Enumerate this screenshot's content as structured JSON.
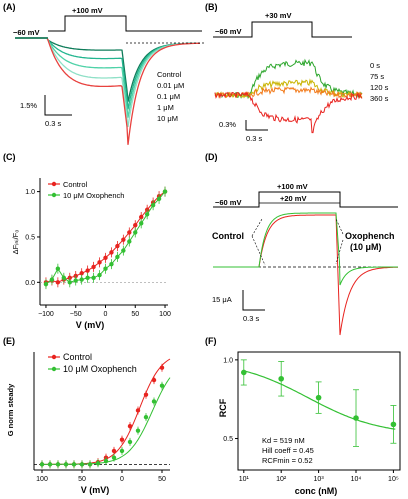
{
  "panels": {
    "A": {
      "letter": "(A)",
      "step_label": "+100 mV",
      "hold_label": "−60 mV",
      "legend": [
        "Control",
        "0.01 μM",
        "0.1 μM",
        "1 μM",
        "10 μM"
      ],
      "scale_y": "1.5%",
      "scale_x": "0.3 s",
      "colors": [
        "#e8423f",
        "#8fe0c7",
        "#4fd2a8",
        "#22b58f",
        "#0f7c5a"
      ]
    },
    "B": {
      "letter": "(B)",
      "step_label": "+30 mV",
      "hold_label": "−60 mV",
      "legend": [
        "0 s",
        "75 s",
        "120 s",
        "360 s"
      ],
      "scale_y": "0.3%",
      "scale_x": "0.3 s",
      "colors": [
        "#e8231f",
        "#f27a1a",
        "#c9b400",
        "#2aa52a"
      ]
    },
    "C": {
      "letter": "(C)",
      "legend": [
        "Control",
        "10 μM Oxophench"
      ],
      "xlabel": "V (mV)",
      "ylabel": "ΔFᵢₙᵢ/F₀",
      "xticks": [
        "−100",
        "−50",
        "0",
        "50",
        "100"
      ],
      "yticks": [
        "0.0",
        "0.5",
        "1.0"
      ]
    },
    "D": {
      "letter": "(D)",
      "step1": "+100 mV",
      "step2": "+20 mV",
      "hold_label": "−60 mV",
      "label_control": "Control",
      "label_oxo": "Oxophench",
      "label_oxo_conc": "(10 μM)",
      "scale_y": "15 μA",
      "scale_x": "0.3 s"
    },
    "E": {
      "letter": "(E)",
      "legend": [
        "Control",
        "10 μM Oxophench"
      ],
      "xlabel": "V (mV)",
      "ylabel": "G norm steady",
      "xticks": [
        "100",
        "50",
        "0",
        "50"
      ],
      "yticks": []
    },
    "F": {
      "letter": "(F)",
      "xlabel": "conc (nM)",
      "ylabel": "RCF",
      "xticks": [
        "10¹",
        "10²",
        "10³",
        "10⁴",
        "10⁵"
      ],
      "yticks": [
        "0.5",
        "1.0"
      ],
      "fit_kd": "Kd = 519 nM",
      "fit_hill": "Hill coeff = 0.45",
      "fit_rcf": "RCFmin = 0.52"
    }
  },
  "chart_data": [
    {
      "panel": "C",
      "type": "scatter",
      "series": [
        {
          "name": "Control",
          "color": "#e8231f",
          "x": [
            -100,
            -90,
            -80,
            -70,
            -60,
            -50,
            -40,
            -30,
            -20,
            -10,
            0,
            10,
            20,
            30,
            40,
            50,
            60,
            70,
            80,
            90,
            100
          ],
          "y": [
            0.0,
            0.02,
            0.0,
            0.03,
            0.05,
            0.07,
            0.1,
            0.13,
            0.17,
            0.22,
            0.27,
            0.33,
            0.4,
            0.47,
            0.55,
            0.63,
            0.72,
            0.8,
            0.88,
            0.95,
            1.0
          ]
        },
        {
          "name": "10 μM Oxophench",
          "color": "#33c033",
          "x": [
            -100,
            -90,
            -80,
            -70,
            -60,
            -50,
            -40,
            -30,
            -20,
            -10,
            0,
            10,
            20,
            30,
            40,
            50,
            60,
            70,
            80,
            90,
            100
          ],
          "y": [
            -0.02,
            0.03,
            0.15,
            0.05,
            0.0,
            0.02,
            0.03,
            0.05,
            0.05,
            0.08,
            0.15,
            0.2,
            0.28,
            0.35,
            0.45,
            0.55,
            0.65,
            0.75,
            0.85,
            0.92,
            1.0
          ]
        }
      ],
      "xlim": [
        -110,
        105
      ],
      "ylim": [
        -0.25,
        1.15
      ]
    },
    {
      "panel": "E",
      "type": "scatter",
      "series": [
        {
          "name": "Control",
          "color": "#e8231f",
          "x": [
            -100,
            -90,
            -80,
            -70,
            -60,
            -50,
            -40,
            -30,
            -20,
            -10,
            0,
            10,
            20,
            30,
            40,
            50
          ],
          "y": [
            0,
            0,
            0,
            0,
            0,
            0,
            0,
            0.02,
            0.06,
            0.12,
            0.22,
            0.34,
            0.48,
            0.62,
            0.75,
            0.86
          ]
        },
        {
          "name": "10 μM Oxophench",
          "color": "#33c033",
          "x": [
            -100,
            -90,
            -80,
            -70,
            -60,
            -50,
            -40,
            -30,
            -20,
            -10,
            0,
            10,
            20,
            30,
            40,
            50
          ],
          "y": [
            0,
            0,
            0,
            0,
            0,
            0,
            0,
            0.01,
            0.03,
            0.06,
            0.12,
            0.2,
            0.3,
            0.42,
            0.56,
            0.7
          ]
        }
      ],
      "xlim": [
        -110,
        60
      ],
      "ylim": [
        -0.05,
        1.0
      ]
    },
    {
      "panel": "F",
      "type": "scatter",
      "series": [
        {
          "name": "",
          "color": "#33c033",
          "x": [
            10,
            100,
            1000,
            10000,
            100000
          ],
          "y": [
            0.92,
            0.88,
            0.76,
            0.63,
            0.59
          ],
          "err": [
            0.08,
            0.11,
            0.1,
            0.18,
            0.12
          ]
        }
      ],
      "xlim": [
        7,
        150000
      ],
      "ylim": [
        0.3,
        1.05
      ],
      "xscale": "log"
    }
  ]
}
